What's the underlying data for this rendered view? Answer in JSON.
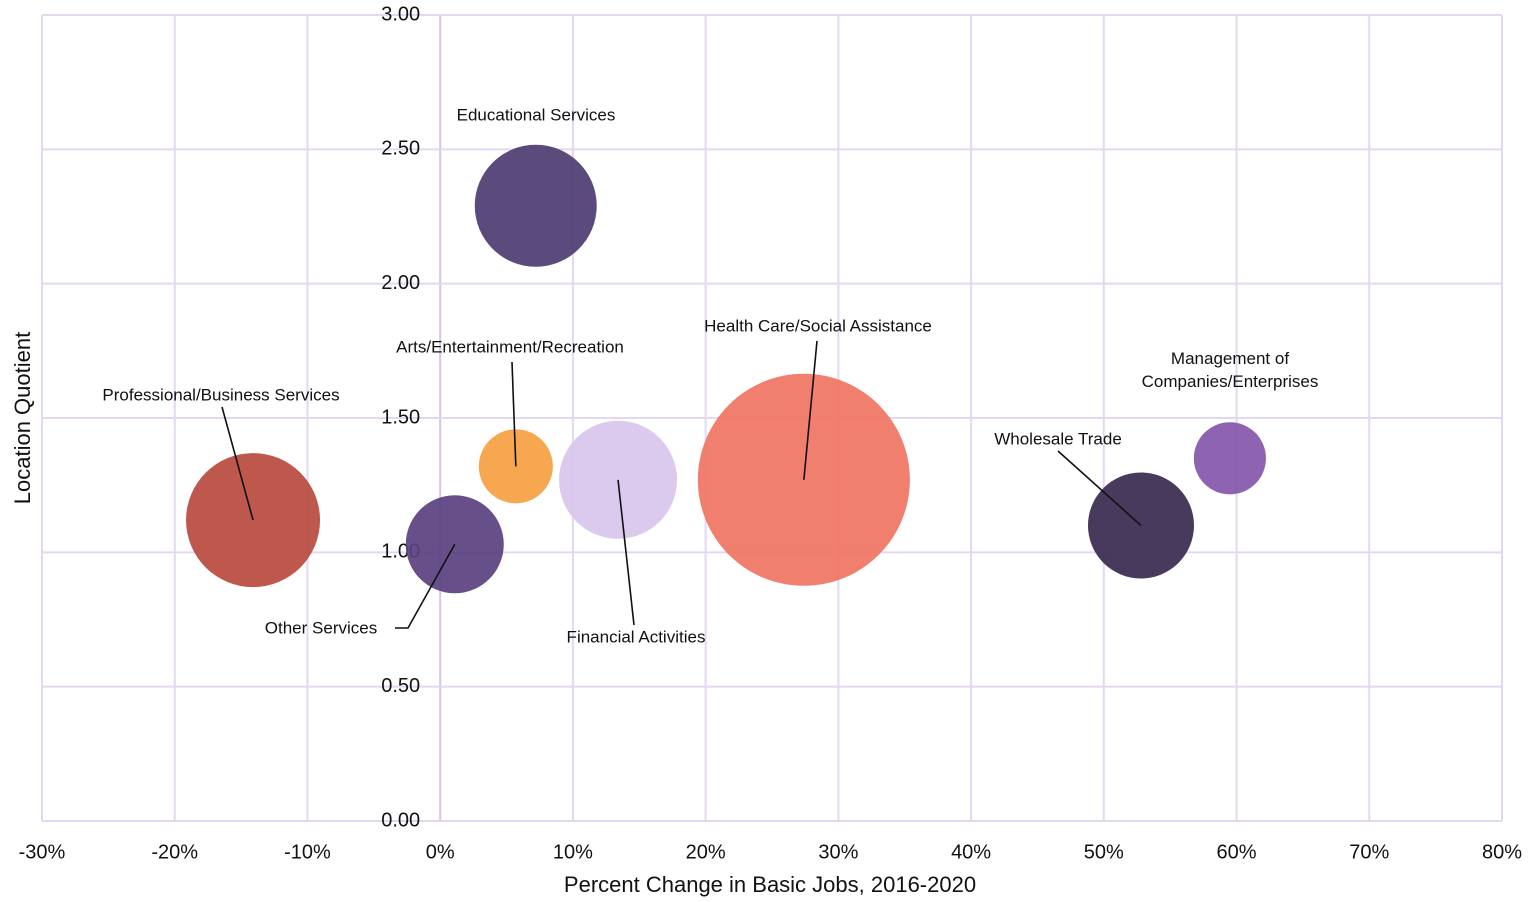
{
  "chart_data": {
    "type": "bubble",
    "x_label": "Percent Change in Basic Jobs, 2016-2020",
    "y_label": "Location Quotient",
    "xlim": [
      -30,
      80
    ],
    "ylim": [
      0,
      3
    ],
    "xticks": [
      {
        "value": -30,
        "label": "-30%"
      },
      {
        "value": -20,
        "label": "-20%"
      },
      {
        "value": -10,
        "label": "-10%"
      },
      {
        "value": 0,
        "label": "0%"
      },
      {
        "value": 10,
        "label": "10%"
      },
      {
        "value": 20,
        "label": "20%"
      },
      {
        "value": 30,
        "label": "30%"
      },
      {
        "value": 40,
        "label": "40%"
      },
      {
        "value": 50,
        "label": "50%"
      },
      {
        "value": 60,
        "label": "60%"
      },
      {
        "value": 70,
        "label": "70%"
      },
      {
        "value": 80,
        "label": "80%"
      }
    ],
    "yticks": [
      {
        "value": 0,
        "label": "0.00"
      },
      {
        "value": 0.5,
        "label": "0.50"
      },
      {
        "value": 1,
        "label": "1.00"
      },
      {
        "value": 1.5,
        "label": "1.50"
      },
      {
        "value": 2,
        "label": "2.00"
      },
      {
        "value": 2.5,
        "label": "2.50"
      },
      {
        "value": 3,
        "label": "3.00"
      }
    ],
    "grid": true,
    "points": [
      {
        "label": "Professional/Business Services",
        "x": -14.1,
        "y": 1.12,
        "size": 449,
        "color": "#b94a3e"
      },
      {
        "label": "Educational Services",
        "x": 7.2,
        "y": 2.29,
        "size": 372,
        "color": "#4d3c72"
      },
      {
        "label": "Arts/Entertainment/Recreation",
        "x": 5.7,
        "y": 1.32,
        "size": 137,
        "color": "#f6a040"
      },
      {
        "label": "Financial Activities",
        "x": 13.4,
        "y": 1.27,
        "size": 348,
        "color": "#d8c6eb"
      },
      {
        "label": "Health Care/Social Assistance",
        "x": 27.4,
        "y": 1.27,
        "size": 1124,
        "color": "#f07461"
      },
      {
        "label": "Other Services",
        "x": 1.1,
        "y": 1.03,
        "size": 240,
        "color": "#5a4080"
      },
      {
        "label": "Wholesale Trade",
        "x": 52.8,
        "y": 1.1,
        "size": 281,
        "color": "#38294f"
      },
      {
        "label": "Management of Companies/Enterprises",
        "x": 59.5,
        "y": 1.35,
        "size": 130,
        "color": "#8456aa"
      }
    ]
  }
}
